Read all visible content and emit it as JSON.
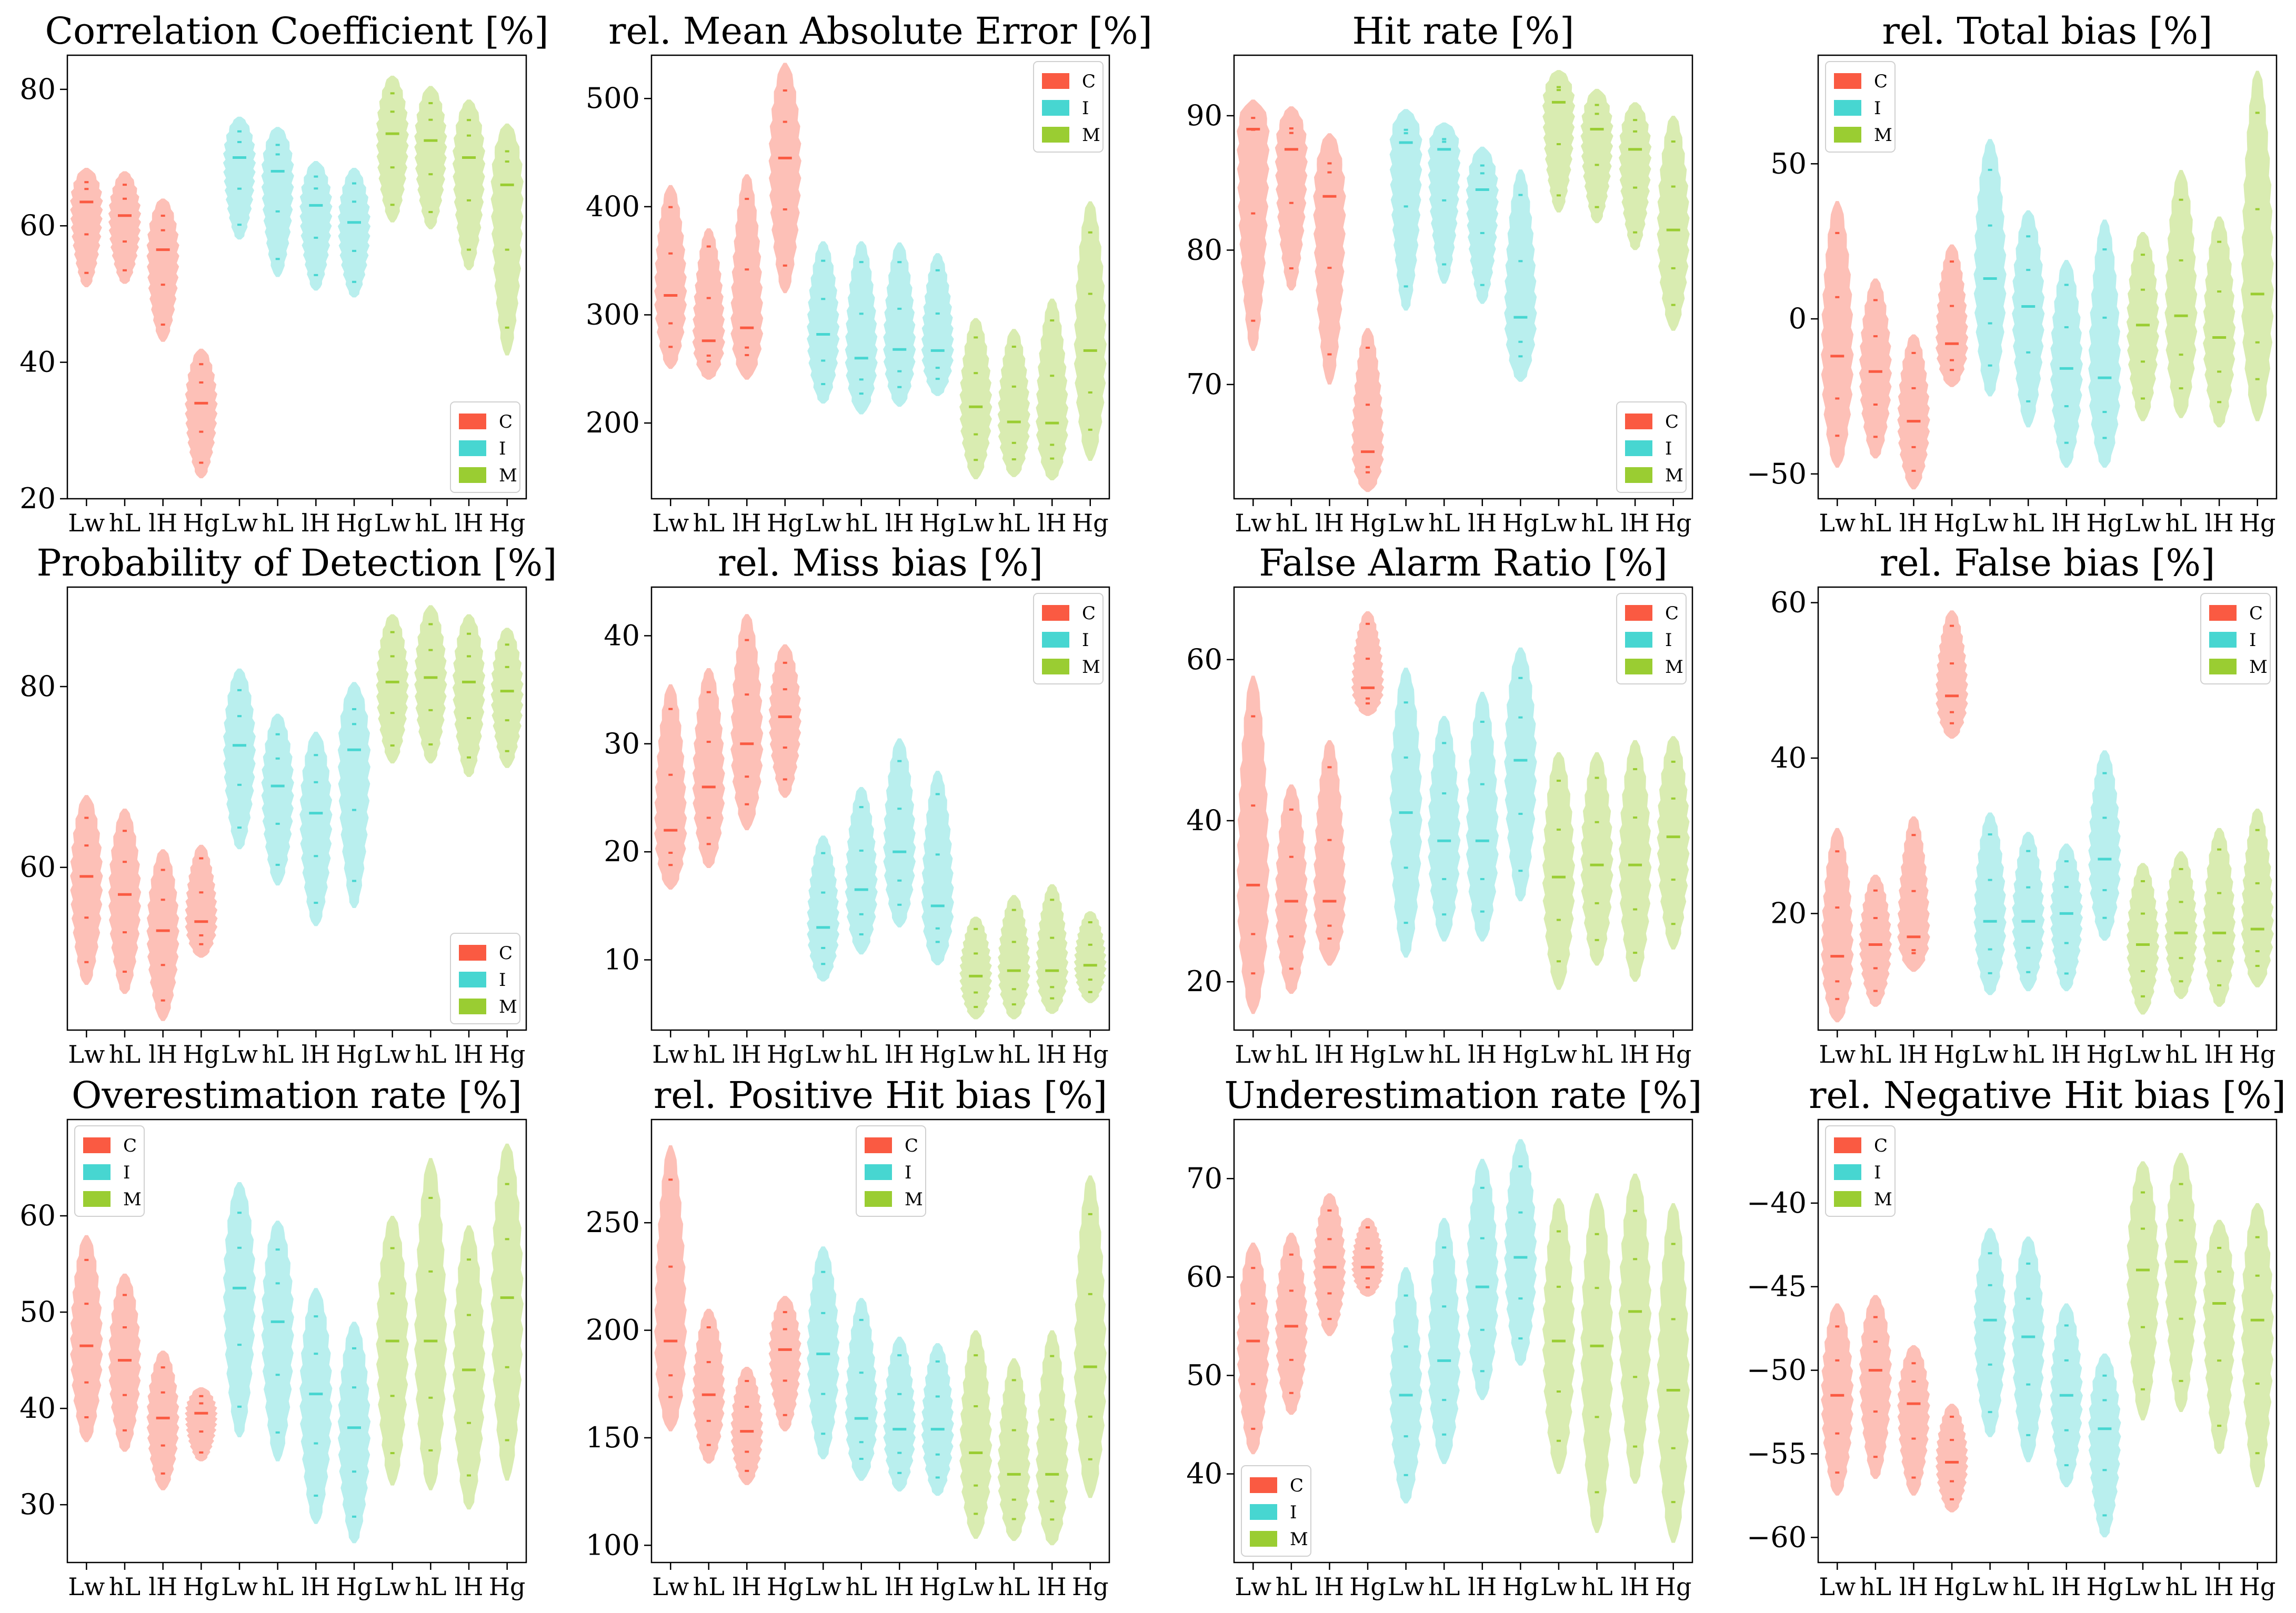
{
  "colors": {
    "C": "#FA5A42",
    "I": "#47D6D1",
    "M": "#9ACD32"
  },
  "chart_data": [
    {
      "type": "violin",
      "title": "Correlation Coefficient [%]",
      "ylabel": "",
      "ylim": [
        20,
        85
      ],
      "yticks": [
        20,
        40,
        60,
        80
      ],
      "legend": "bottom-right",
      "categories": [
        "Lw",
        "hL",
        "lH",
        "Hg",
        "Lw",
        "hL",
        "lH",
        "Hg",
        "Lw",
        "hL",
        "lH",
        "Hg"
      ],
      "series": [
        {
          "name": "C",
          "values": [
            63.5,
            61.5,
            56.5,
            34
          ]
        },
        {
          "name": "I",
          "values": [
            70,
            68,
            63,
            60.5
          ]
        },
        {
          "name": "M",
          "values": [
            73.5,
            72.5,
            70,
            66
          ]
        }
      ],
      "ranges": [
        [
          51,
          68.5
        ],
        [
          51.5,
          68
        ],
        [
          43,
          64
        ],
        [
          23,
          42
        ],
        [
          58,
          76
        ],
        [
          52.5,
          74.5
        ],
        [
          50.5,
          69.5
        ],
        [
          49.5,
          68.5
        ],
        [
          60.5,
          82
        ],
        [
          59.5,
          80.5
        ],
        [
          53.5,
          78.5
        ],
        [
          41,
          75
        ]
      ]
    },
    {
      "type": "violin",
      "title": "rel. Mean Absolute Error [%]",
      "ylabel": "",
      "ylim": [
        130,
        540
      ],
      "yticks": [
        200,
        300,
        400,
        500
      ],
      "legend": "top-right",
      "categories": [
        "Lw",
        "hL",
        "lH",
        "Hg",
        "Lw",
        "hL",
        "lH",
        "Hg",
        "Lw",
        "hL",
        "lH",
        "Hg"
      ],
      "series": [
        {
          "name": "C",
          "values": [
            318,
            276,
            288,
            445
          ]
        },
        {
          "name": "I",
          "values": [
            282,
            260,
            268,
            267
          ]
        },
        {
          "name": "M",
          "values": [
            215,
            201,
            200,
            267
          ]
        }
      ],
      "ranges": [
        [
          250,
          420
        ],
        [
          240,
          380
        ],
        [
          240,
          430
        ],
        [
          320,
          533
        ],
        [
          218,
          368
        ],
        [
          208,
          368
        ],
        [
          215,
          367
        ],
        [
          225,
          357
        ],
        [
          148,
          297
        ],
        [
          150,
          287
        ],
        [
          147,
          315
        ],
        [
          165,
          405
        ]
      ]
    },
    {
      "type": "violin",
      "title": "Hit rate [%]",
      "ylabel": "",
      "ylim": [
        61.5,
        94.5
      ],
      "yticks": [
        70,
        80,
        90
      ],
      "legend": "bottom-right",
      "categories": [
        "Lw",
        "hL",
        "lH",
        "Hg",
        "Lw",
        "hL",
        "lH",
        "Hg",
        "Lw",
        "hL",
        "lH",
        "Hg"
      ],
      "series": [
        {
          "name": "C",
          "values": [
            89,
            87.5,
            84,
            65
          ]
        },
        {
          "name": "I",
          "values": [
            88,
            87.5,
            84.5,
            75
          ]
        },
        {
          "name": "M",
          "values": [
            91,
            89,
            87.5,
            81.5
          ]
        }
      ],
      "ranges": [
        [
          72.5,
          91.2
        ],
        [
          77,
          90.7
        ],
        [
          70,
          88.7
        ],
        [
          62,
          74.2
        ],
        [
          75.5,
          90.5
        ],
        [
          77.5,
          89.5
        ],
        [
          76,
          87.7
        ],
        [
          70.2,
          86
        ],
        [
          82.8,
          93.4
        ],
        [
          82,
          92
        ],
        [
          80,
          91
        ],
        [
          74,
          90
        ]
      ]
    },
    {
      "type": "violin",
      "title": "rel. Total bias [%]",
      "ylabel": "",
      "ylim": [
        -58,
        85
      ],
      "yticks": [
        -50,
        0,
        50
      ],
      "legend": "top-left",
      "categories": [
        "Lw",
        "hL",
        "lH",
        "Hg",
        "Lw",
        "hL",
        "lH",
        "Hg",
        "Lw",
        "hL",
        "lH",
        "Hg"
      ],
      "series": [
        {
          "name": "C",
          "values": [
            -12,
            -17,
            -33,
            -8
          ]
        },
        {
          "name": "I",
          "values": [
            13,
            4,
            -16,
            -19
          ]
        },
        {
          "name": "M",
          "values": [
            -2,
            1,
            -6,
            8
          ]
        }
      ],
      "ranges": [
        [
          -48,
          38
        ],
        [
          -45,
          13
        ],
        [
          -55,
          -5
        ],
        [
          -22,
          24
        ],
        [
          -25,
          58
        ],
        [
          -35,
          35
        ],
        [
          -48,
          19
        ],
        [
          -48,
          32
        ],
        [
          -33,
          28
        ],
        [
          -32,
          48
        ],
        [
          -35,
          33
        ],
        [
          -33,
          80
        ]
      ]
    },
    {
      "type": "violin",
      "title": "Probability of Detection [%]",
      "ylabel": "",
      "ylim": [
        42,
        91
      ],
      "yticks": [
        60,
        80
      ],
      "legend": "bottom-right",
      "categories": [
        "Lw",
        "hL",
        "lH",
        "Hg",
        "Lw",
        "hL",
        "lH",
        "Hg",
        "Lw",
        "hL",
        "lH",
        "Hg"
      ],
      "series": [
        {
          "name": "C",
          "values": [
            59,
            57,
            53,
            54
          ]
        },
        {
          "name": "I",
          "values": [
            73.5,
            69,
            66,
            73
          ]
        },
        {
          "name": "M",
          "values": [
            80.5,
            81,
            80.5,
            79.5
          ]
        }
      ],
      "ranges": [
        [
          47,
          68
        ],
        [
          46,
          66.5
        ],
        [
          43,
          62
        ],
        [
          50,
          62.5
        ],
        [
          62,
          82
        ],
        [
          58,
          77
        ],
        [
          53.5,
          75
        ],
        [
          55.5,
          80.5
        ],
        [
          71.5,
          88
        ],
        [
          71.5,
          89
        ],
        [
          70,
          88
        ],
        [
          71,
          86.5
        ]
      ]
    },
    {
      "type": "violin",
      "title": "rel. Miss bias [%]",
      "ylabel": "",
      "ylim": [
        3.5,
        44.5
      ],
      "yticks": [
        10,
        20,
        30,
        40
      ],
      "legend": "top-right",
      "categories": [
        "Lw",
        "hL",
        "lH",
        "Hg",
        "Lw",
        "hL",
        "lH",
        "Hg",
        "Lw",
        "hL",
        "lH",
        "Hg"
      ],
      "series": [
        {
          "name": "C",
          "values": [
            22,
            26,
            30,
            32.5
          ]
        },
        {
          "name": "I",
          "values": [
            13,
            16.5,
            20,
            15
          ]
        },
        {
          "name": "M",
          "values": [
            8.5,
            9,
            9,
            9.5
          ]
        }
      ],
      "ranges": [
        [
          16.5,
          35.5
        ],
        [
          18.5,
          37
        ],
        [
          22,
          42
        ],
        [
          25,
          39.2
        ],
        [
          8,
          21.5
        ],
        [
          10.5,
          26
        ],
        [
          13,
          30.5
        ],
        [
          9.5,
          27.5
        ],
        [
          4.5,
          14
        ],
        [
          4.5,
          16
        ],
        [
          5,
          17
        ],
        [
          6,
          14.5
        ]
      ]
    },
    {
      "type": "violin",
      "title": "False Alarm Ratio [%]",
      "ylabel": "",
      "ylim": [
        14,
        69
      ],
      "yticks": [
        20,
        40,
        60
      ],
      "legend": "top-right",
      "categories": [
        "Lw",
        "hL",
        "lH",
        "Hg",
        "Lw",
        "hL",
        "lH",
        "Hg",
        "Lw",
        "hL",
        "lH",
        "Hg"
      ],
      "series": [
        {
          "name": "C",
          "values": [
            32,
            30,
            30,
            56.5
          ]
        },
        {
          "name": "I",
          "values": [
            41,
            37.5,
            37.5,
            47.5
          ]
        },
        {
          "name": "M",
          "values": [
            33,
            34.5,
            34.5,
            38
          ]
        }
      ],
      "ranges": [
        [
          16,
          58
        ],
        [
          18.5,
          44.5
        ],
        [
          22,
          50
        ],
        [
          53,
          66
        ],
        [
          23,
          59
        ],
        [
          25,
          53
        ],
        [
          25,
          56
        ],
        [
          30,
          61.5
        ],
        [
          19,
          48.5
        ],
        [
          22,
          48.5
        ],
        [
          20,
          50
        ],
        [
          24,
          50.5
        ]
      ]
    },
    {
      "type": "violin",
      "title": "rel. False bias [%]",
      "ylabel": "",
      "ylim": [
        5,
        62
      ],
      "yticks": [
        20,
        40,
        60
      ],
      "legend": "top-right",
      "categories": [
        "Lw",
        "hL",
        "lH",
        "Hg",
        "Lw",
        "hL",
        "lH",
        "Hg",
        "Lw",
        "hL",
        "lH",
        "Hg"
      ],
      "series": [
        {
          "name": "C",
          "values": [
            14.5,
            16,
            17,
            48
          ]
        },
        {
          "name": "I",
          "values": [
            19,
            19,
            20,
            27
          ]
        },
        {
          "name": "M",
          "values": [
            16,
            17.5,
            17.5,
            18
          ]
        }
      ],
      "ranges": [
        [
          6,
          31
        ],
        [
          8,
          25
        ],
        [
          12.5,
          32.5
        ],
        [
          42.5,
          59
        ],
        [
          9.5,
          33
        ],
        [
          10,
          30.5
        ],
        [
          10,
          29
        ],
        [
          16.5,
          41
        ],
        [
          7,
          26.5
        ],
        [
          9,
          28
        ],
        [
          8,
          31
        ],
        [
          10.5,
          33.5
        ]
      ]
    },
    {
      "type": "violin",
      "title": "Overestimation rate [%]",
      "ylabel": "",
      "ylim": [
        24,
        70
      ],
      "yticks": [
        30,
        40,
        50,
        60
      ],
      "legend": "top-left",
      "categories": [
        "Lw",
        "hL",
        "lH",
        "Hg",
        "Lw",
        "hL",
        "lH",
        "Hg",
        "Lw",
        "hL",
        "lH",
        "Hg"
      ],
      "series": [
        {
          "name": "C",
          "values": [
            46.5,
            45,
            39,
            39.5
          ]
        },
        {
          "name": "I",
          "values": [
            52.5,
            49,
            41.5,
            38
          ]
        },
        {
          "name": "M",
          "values": [
            47,
            47,
            44,
            51.5
          ]
        }
      ],
      "ranges": [
        [
          36.5,
          58
        ],
        [
          35.5,
          54
        ],
        [
          31.5,
          46
        ],
        [
          34.5,
          42.2
        ],
        [
          37,
          63.5
        ],
        [
          34.5,
          59.5
        ],
        [
          28,
          52.5
        ],
        [
          26,
          49
        ],
        [
          32,
          60
        ],
        [
          31.5,
          66
        ],
        [
          29.5,
          59
        ],
        [
          32.5,
          67.5
        ]
      ]
    },
    {
      "type": "violin",
      "title": "rel. Positive Hit bias [%]",
      "ylabel": "",
      "ylim": [
        92,
        298
      ],
      "yticks": [
        100,
        150,
        200,
        250
      ],
      "legend": "top-center",
      "categories": [
        "Lw",
        "hL",
        "lH",
        "Hg",
        "Lw",
        "hL",
        "lH",
        "Hg",
        "Lw",
        "hL",
        "lH",
        "Hg"
      ],
      "series": [
        {
          "name": "C",
          "values": [
            195,
            170,
            153,
            191
          ]
        },
        {
          "name": "I",
          "values": [
            189,
            159,
            154,
            154
          ]
        },
        {
          "name": "M",
          "values": [
            143,
            133,
            133,
            183
          ]
        }
      ],
      "ranges": [
        [
          153,
          286
        ],
        [
          138,
          210
        ],
        [
          128,
          183
        ],
        [
          153,
          216
        ],
        [
          140,
          239
        ],
        [
          130,
          215
        ],
        [
          125,
          197
        ],
        [
          123,
          194
        ],
        [
          103,
          200
        ],
        [
          102,
          187
        ],
        [
          100,
          200
        ],
        [
          122,
          272
        ]
      ]
    },
    {
      "type": "violin",
      "title": "Underestimation rate [%]",
      "ylabel": "",
      "ylim": [
        31,
        76
      ],
      "yticks": [
        40,
        50,
        60,
        70
      ],
      "legend": "bottom-left",
      "categories": [
        "Lw",
        "hL",
        "lH",
        "Hg",
        "Lw",
        "hL",
        "lH",
        "Hg",
        "Lw",
        "hL",
        "lH",
        "Hg"
      ],
      "series": [
        {
          "name": "C",
          "values": [
            53.5,
            55,
            61,
            61
          ]
        },
        {
          "name": "I",
          "values": [
            48,
            51.5,
            59,
            62
          ]
        },
        {
          "name": "M",
          "values": [
            53.5,
            53,
            56.5,
            48.5
          ]
        }
      ],
      "ranges": [
        [
          42,
          63.5
        ],
        [
          46,
          64.5
        ],
        [
          54,
          68.5
        ],
        [
          58,
          66
        ],
        [
          37,
          61
        ],
        [
          41,
          66
        ],
        [
          47.5,
          72
        ],
        [
          51,
          74
        ],
        [
          40,
          68
        ],
        [
          34,
          68.5
        ],
        [
          39,
          70.5
        ],
        [
          33,
          67.5
        ]
      ]
    },
    {
      "type": "violin",
      "title": "rel. Negative Hit bias [%]",
      "ylabel": "",
      "ylim": [
        -61.5,
        -35
      ],
      "yticks": [
        -60,
        -55,
        -50,
        -45,
        -40
      ],
      "legend": "top-left",
      "categories": [
        "Lw",
        "hL",
        "lH",
        "Hg",
        "Lw",
        "hL",
        "lH",
        "Hg",
        "Lw",
        "hL",
        "lH",
        "Hg"
      ],
      "series": [
        {
          "name": "C",
          "values": [
            -51.5,
            -50,
            -52,
            -55.5
          ]
        },
        {
          "name": "I",
          "values": [
            -47,
            -48,
            -51.5,
            -53.5
          ]
        },
        {
          "name": "M",
          "values": [
            -44,
            -43.5,
            -46,
            -47
          ]
        }
      ],
      "ranges": [
        [
          -57.5,
          -46
        ],
        [
          -56.5,
          -45.5
        ],
        [
          -57.5,
          -48.5
        ],
        [
          -58.5,
          -52
        ],
        [
          -54,
          -41.5
        ],
        [
          -55.5,
          -42
        ],
        [
          -57,
          -46
        ],
        [
          -60,
          -49
        ],
        [
          -53,
          -37.5
        ],
        [
          -52.5,
          -37
        ],
        [
          -55,
          -41
        ],
        [
          -57,
          -40
        ]
      ]
    }
  ]
}
